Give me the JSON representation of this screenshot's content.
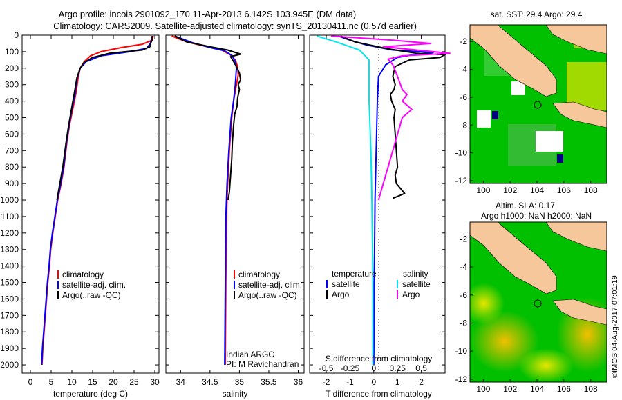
{
  "title": {
    "line1": "Argo profile: incois 2901092_170 11-Apr-2013 6.142S 103.945E (DM data)",
    "line2": "Climatology: CARS2009. Satellite-adjusted climatology: synTS_20130411.nc (0.57d earlier)"
  },
  "colors": {
    "climatology": "#ff0000",
    "satellite": "#0000ff",
    "argo": "#000000",
    "sat_diff": "#00e5ee",
    "argo_sal_diff": "#ff00ff",
    "land": "#f5c79a",
    "ocean_low": "#00c000",
    "ocean_high": "#e6e600"
  },
  "panels": {
    "temperature": {
      "xlabel": "temperature (deg C)",
      "xticks": [
        "0",
        "5",
        "10",
        "15",
        "20",
        "25",
        "30"
      ],
      "legend": [
        "climatology",
        "satellite-adj. clim.",
        "Argo(..raw -QC)"
      ]
    },
    "salinity": {
      "xlabel": "salinity",
      "xticks": [
        "34",
        "34.5",
        "35",
        "35.5",
        "36"
      ],
      "legend": [
        "climatology",
        "satellite-adj. clim.",
        "Argo(..raw -QC)"
      ],
      "note1": "Indian ARGO",
      "note2": "PI: M Ravichandran"
    },
    "difference": {
      "s_label": "S difference from climatology",
      "s_ticks": [
        "-0.5",
        "-0.25",
        "0",
        "0.25",
        "0.5"
      ],
      "xlabel": "T difference from climatology",
      "t_ticks": [
        "-2",
        "-1",
        "0",
        "1",
        "2"
      ],
      "legend_temp_title": "temperature",
      "legend_sal_title": "salinity",
      "legend_satellite": "satellite",
      "legend_argo": "Argo"
    },
    "depth_ticks": [
      "0",
      "100",
      "200",
      "300",
      "400",
      "500",
      "600",
      "700",
      "800",
      "900",
      "1000",
      "1100",
      "1200",
      "1300",
      "1400",
      "1500",
      "1600",
      "1700",
      "1800",
      "1900",
      "2000"
    ]
  },
  "maps": {
    "sst": {
      "title": "sat. SST: 29.4  Argo: 29.4"
    },
    "sla": {
      "title1": "Altim. SLA: 0.17",
      "title2": "Argo h1000: NaN h2000: NaN"
    },
    "xticks": [
      "100",
      "102",
      "104",
      "106",
      "108"
    ],
    "yticks": [
      "-2",
      "-4",
      "-6",
      "-8",
      "-10",
      "-12"
    ]
  },
  "stamp": "©IMOS 04-Aug-2017 07:01:19",
  "chart_data": [
    {
      "type": "line",
      "xlabel": "temperature (deg C)",
      "ylabel": "",
      "xlim": [
        -2,
        31
      ],
      "ylim": [
        2050,
        0
      ],
      "series": [
        {
          "name": "climatology",
          "points": [
            [
              29.6,
              5
            ],
            [
              29.4,
              30
            ],
            [
              27,
              55
            ],
            [
              22,
              75
            ],
            [
              17,
              100
            ],
            [
              14.5,
              125
            ],
            [
              13,
              160
            ],
            [
              12,
              200
            ],
            [
              11.5,
              260
            ],
            [
              11,
              350
            ],
            [
              10.2,
              450
            ],
            [
              9.4,
              550
            ],
            [
              8.8,
              650
            ],
            [
              8.1,
              800
            ],
            [
              7.4,
              900
            ],
            [
              6.6,
              1000
            ],
            [
              6,
              1100
            ],
            [
              5.4,
              1200
            ],
            [
              4.9,
              1300
            ],
            [
              4.6,
              1400
            ],
            [
              4.2,
              1500
            ],
            [
              3.9,
              1600
            ],
            [
              3.6,
              1700
            ],
            [
              3.3,
              1800
            ],
            [
              3,
              1900
            ],
            [
              2.8,
              2000
            ]
          ]
        },
        {
          "name": "satellite-adj. clim.",
          "points": [
            [
              29.4,
              5
            ],
            [
              29.2,
              30
            ],
            [
              28.8,
              55
            ],
            [
              28,
              80
            ],
            [
              24,
              100
            ],
            [
              17,
              125
            ],
            [
              13.5,
              160
            ],
            [
              12,
              200
            ],
            [
              11.3,
              260
            ],
            [
              10.8,
              350
            ],
            [
              10,
              450
            ],
            [
              9.3,
              550
            ],
            [
              8.7,
              650
            ],
            [
              8,
              800
            ],
            [
              7.3,
              900
            ],
            [
              6.5,
              1000
            ],
            [
              5.9,
              1100
            ],
            [
              5.3,
              1200
            ],
            [
              4.8,
              1300
            ],
            [
              4.5,
              1400
            ],
            [
              4.1,
              1500
            ],
            [
              3.8,
              1600
            ],
            [
              3.5,
              1700
            ],
            [
              3.2,
              1800
            ],
            [
              2.9,
              1900
            ],
            [
              2.7,
              2000
            ]
          ]
        },
        {
          "name": "Argo(..raw -QC)",
          "points": [
            [
              29.4,
              5
            ],
            [
              29.3,
              30
            ],
            [
              29,
              50
            ],
            [
              28.8,
              70
            ],
            [
              27,
              90
            ],
            [
              19,
              110
            ],
            [
              15,
              135
            ],
            [
              13,
              165
            ],
            [
              12,
              200
            ],
            [
              11.2,
              260
            ],
            [
              10.6,
              350
            ],
            [
              9.9,
              450
            ],
            [
              9.2,
              550
            ],
            [
              8.6,
              650
            ],
            [
              7.8,
              800
            ],
            [
              7.1,
              900
            ],
            [
              6.4,
              1000
            ]
          ]
        }
      ]
    },
    {
      "type": "line",
      "xlabel": "salinity",
      "ylabel": "",
      "xlim": [
        33.75,
        36.1
      ],
      "ylim": [
        2050,
        0
      ],
      "series": [
        {
          "name": "climatology",
          "points": [
            [
              33.85,
              5
            ],
            [
              34.1,
              40
            ],
            [
              34.45,
              70
            ],
            [
              34.7,
              90
            ],
            [
              34.85,
              120
            ],
            [
              34.93,
              150
            ],
            [
              34.97,
              190
            ],
            [
              34.98,
              240
            ],
            [
              34.95,
              300
            ],
            [
              34.9,
              400
            ],
            [
              34.87,
              500
            ],
            [
              34.83,
              700
            ],
            [
              34.8,
              900
            ],
            [
              34.78,
              1100
            ],
            [
              34.77,
              1500
            ],
            [
              34.76,
              2000
            ]
          ]
        },
        {
          "name": "satellite-adj. clim.",
          "points": [
            [
              33.9,
              5
            ],
            [
              34.2,
              45
            ],
            [
              34.5,
              75
            ],
            [
              34.75,
              95
            ],
            [
              34.88,
              125
            ],
            [
              34.93,
              160
            ],
            [
              34.95,
              200
            ],
            [
              34.93,
              300
            ],
            [
              34.9,
              400
            ],
            [
              34.86,
              500
            ],
            [
              34.82,
              700
            ],
            [
              34.79,
              900
            ],
            [
              34.77,
              1100
            ],
            [
              34.76,
              1500
            ],
            [
              34.75,
              2000
            ]
          ]
        },
        {
          "name": "Argo(..raw -QC)",
          "points": [
            [
              33.9,
              5
            ],
            [
              34.1,
              40
            ],
            [
              34.5,
              70
            ],
            [
              34.8,
              90
            ],
            [
              35.02,
              115
            ],
            [
              34.85,
              130
            ],
            [
              34.9,
              160
            ],
            [
              34.95,
              190
            ],
            [
              35.0,
              230
            ],
            [
              35.02,
              270
            ],
            [
              34.98,
              300
            ],
            [
              35.0,
              330
            ],
            [
              34.97,
              380
            ],
            [
              34.96,
              430
            ],
            [
              34.92,
              480
            ],
            [
              34.9,
              550
            ],
            [
              34.88,
              650
            ],
            [
              34.87,
              750
            ],
            [
              34.85,
              850
            ],
            [
              34.83,
              950
            ],
            [
              34.81,
              1000
            ]
          ]
        }
      ]
    },
    {
      "type": "line",
      "xlabel": "T difference from climatology",
      "ylabel": "",
      "xlim": [
        -2.7,
        3
      ],
      "ylim": [
        2050,
        0
      ],
      "series": [
        {
          "name": "temperature satellite",
          "points": [
            [
              -1.5,
              5
            ],
            [
              -1.0,
              30
            ],
            [
              -0.3,
              60
            ],
            [
              0.8,
              90
            ],
            [
              2.5,
              105
            ],
            [
              1.8,
              115
            ],
            [
              1.0,
              135
            ],
            [
              0.5,
              180
            ],
            [
              0.2,
              250
            ],
            [
              0.15,
              400
            ],
            [
              0.1,
              700
            ],
            [
              0.05,
              1000
            ],
            [
              0.02,
              1500
            ],
            [
              0,
              2000
            ]
          ]
        },
        {
          "name": "temperature Argo",
          "points": [
            [
              -1.4,
              5
            ],
            [
              -0.8,
              40
            ],
            [
              0.5,
              80
            ],
            [
              1.8,
              110
            ],
            [
              3,
              118
            ],
            [
              2.9,
              125
            ],
            [
              2.8,
              135
            ],
            [
              1.5,
              150
            ],
            [
              0.9,
              190
            ],
            [
              0.8,
              250
            ],
            [
              0.9,
              300
            ],
            [
              0.85,
              330
            ],
            [
              0.7,
              360
            ],
            [
              0.75,
              400
            ],
            [
              0.9,
              450
            ],
            [
              0.85,
              500
            ],
            [
              0.9,
              600
            ],
            [
              0.95,
              700
            ],
            [
              1.0,
              800
            ],
            [
              0.9,
              850
            ],
            [
              0.95,
              900
            ],
            [
              1.3,
              960
            ],
            [
              0.8,
              990
            ]
          ]
        },
        {
          "name": "salinity satellite",
          "points": [
            [
              -0.6,
              5
            ],
            [
              -0.4,
              40
            ],
            [
              -0.15,
              90
            ],
            [
              -0.05,
              150
            ],
            [
              -0.05,
              250
            ],
            [
              -0.05,
              400
            ],
            [
              -0.03,
              700
            ],
            [
              -0.02,
              1000
            ],
            [
              -0.01,
              1500
            ],
            [
              -0.01,
              2000
            ]
          ]
        },
        {
          "name": "salinity Argo",
          "points": [
            [
              -0.45,
              5
            ],
            [
              0.2,
              30
            ],
            [
              0.6,
              50
            ],
            [
              0.1,
              70
            ],
            [
              0.8,
              110
            ],
            [
              0.3,
              125
            ],
            [
              0.15,
              145
            ],
            [
              0.2,
              180
            ],
            [
              0.25,
              250
            ],
            [
              0.3,
              330
            ],
            [
              0.35,
              360
            ],
            [
              0.3,
              400
            ],
            [
              0.4,
              450
            ],
            [
              0.3,
              500
            ],
            [
              0.2,
              700
            ],
            [
              0.1,
              900
            ],
            [
              0.05,
              1000
            ]
          ]
        }
      ]
    }
  ]
}
